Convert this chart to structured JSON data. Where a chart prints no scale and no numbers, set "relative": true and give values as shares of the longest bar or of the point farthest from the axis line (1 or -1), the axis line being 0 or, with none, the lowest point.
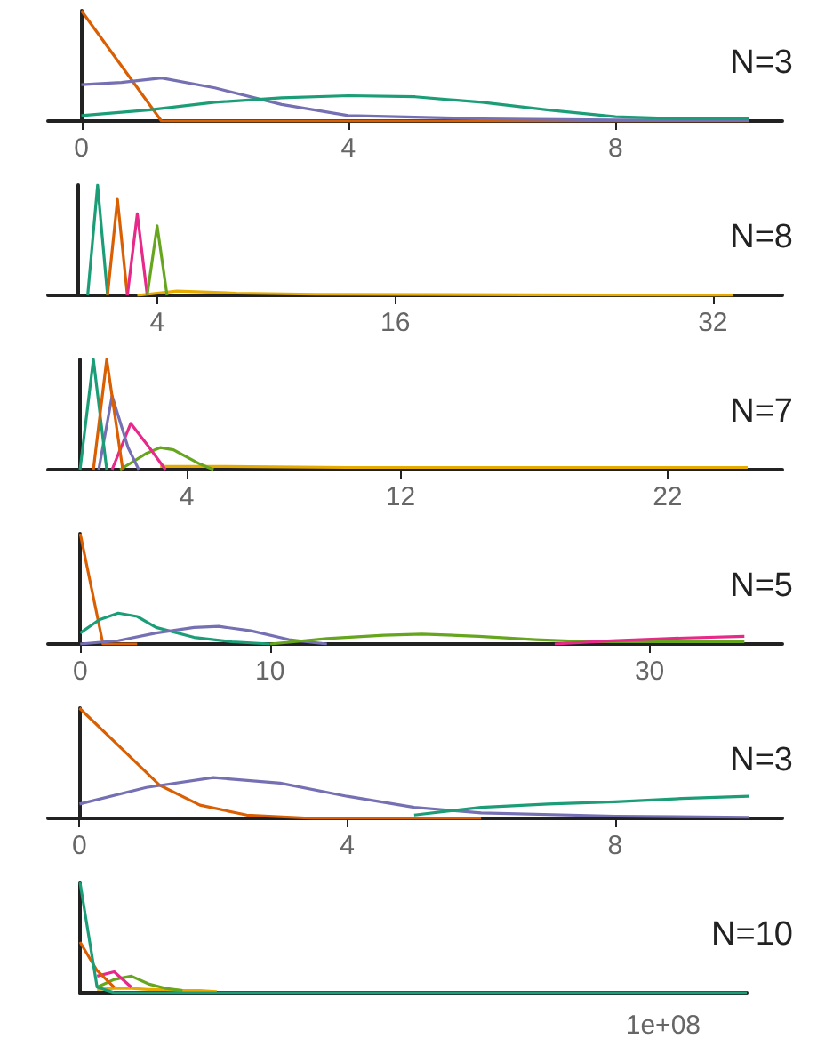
{
  "chart_data": [
    {
      "type": "line",
      "relative": true,
      "xlim": [
        -0.5,
        10.5
      ],
      "xticks": [
        0,
        4,
        8
      ],
      "annotations": [
        "N=3"
      ],
      "series": [
        {
          "color": "#d95f02",
          "x": [
            0,
            0.6,
            1.2,
            2,
            4,
            10
          ],
          "values": [
            1,
            0.5,
            0,
            0,
            0,
            0
          ]
        },
        {
          "color": "#7570b3",
          "x": [
            0,
            0.6,
            1.2,
            2,
            3,
            4,
            6,
            8,
            10
          ],
          "values": [
            0.33,
            0.35,
            0.39,
            0.3,
            0.15,
            0.05,
            0.02,
            0.01,
            0.01
          ]
        },
        {
          "color": "#1b9e77",
          "x": [
            0,
            1,
            2,
            3,
            4,
            5,
            6,
            7,
            8,
            9,
            10
          ],
          "values": [
            0.05,
            0.1,
            0.17,
            0.21,
            0.23,
            0.22,
            0.17,
            0.1,
            0.04,
            0.02,
            0.02
          ]
        }
      ]
    },
    {
      "type": "line",
      "relative": true,
      "xlim": [
        -1.5,
        35.5
      ],
      "xticks": [
        4,
        16,
        32
      ],
      "annotations": [
        "N=8"
      ],
      "series": [
        {
          "color": "#e6ab02",
          "x": [
            3,
            5,
            8,
            12,
            33
          ],
          "values": [
            0,
            0.04,
            0.02,
            0.01,
            0
          ]
        },
        {
          "color": "#1b9e77",
          "x": [
            0.5,
            1,
            1.5
          ],
          "values": [
            0,
            1,
            0
          ]
        },
        {
          "color": "#d95f02",
          "x": [
            1.5,
            2,
            2.5
          ],
          "values": [
            0,
            0.87,
            0
          ]
        },
        {
          "color": "#e7298a",
          "x": [
            2.5,
            3,
            3.5
          ],
          "values": [
            0,
            0.74,
            0
          ]
        },
        {
          "color": "#66a61e",
          "x": [
            3.5,
            4,
            4.5
          ],
          "values": [
            0,
            0.63,
            0
          ]
        }
      ]
    },
    {
      "type": "line",
      "relative": true,
      "xlim": [
        -1.2,
        26.3
      ],
      "xticks": [
        4,
        12,
        22
      ],
      "annotations": [
        "N=7"
      ],
      "series": [
        {
          "color": "#e6ab02",
          "x": [
            3,
            5,
            10,
            25
          ],
          "values": [
            0.03,
            0.03,
            0.02,
            0.02
          ]
        },
        {
          "color": "#66a61e",
          "x": [
            1.5,
            2.5,
            3,
            3.5,
            4.5,
            5
          ],
          "values": [
            0,
            0.15,
            0.2,
            0.18,
            0.05,
            0
          ]
        },
        {
          "color": "#e7298a",
          "x": [
            1.2,
            1.9,
            2.6,
            3.2
          ],
          "values": [
            0,
            0.42,
            0.2,
            0
          ]
        },
        {
          "color": "#7570b3",
          "x": [
            0.7,
            1.2,
            1.8,
            2.2
          ],
          "values": [
            0,
            0.67,
            0.2,
            0
          ]
        },
        {
          "color": "#1b9e77",
          "x": [
            0,
            0.5,
            1
          ],
          "values": [
            0,
            1,
            0
          ]
        },
        {
          "color": "#d95f02",
          "x": [
            0.5,
            1,
            1.6
          ],
          "values": [
            0,
            1,
            0
          ]
        }
      ]
    },
    {
      "type": "line",
      "relative": true,
      "xlim": [
        -1.7,
        37
      ],
      "xticks": [
        0,
        10,
        30
      ],
      "annotations": [
        "N=5"
      ],
      "series": [
        {
          "color": "#d95f02",
          "x": [
            0,
            0.6,
            1.2,
            3
          ],
          "values": [
            1,
            0.5,
            0,
            0
          ]
        },
        {
          "color": "#1b9e77",
          "x": [
            0,
            1,
            2,
            3,
            4,
            6,
            8,
            10
          ],
          "values": [
            0.1,
            0.22,
            0.28,
            0.25,
            0.15,
            0.06,
            0.02,
            0
          ]
        },
        {
          "color": "#7570b3",
          "x": [
            0,
            2,
            4,
            6,
            7.3,
            9,
            11,
            13
          ],
          "values": [
            0,
            0.03,
            0.1,
            0.15,
            0.16,
            0.12,
            0.04,
            0
          ]
        },
        {
          "color": "#66a61e",
          "x": [
            10,
            13,
            16,
            18,
            21,
            24,
            27,
            35
          ],
          "values": [
            0,
            0.05,
            0.08,
            0.09,
            0.07,
            0.04,
            0.02,
            0.02
          ]
        },
        {
          "color": "#e7298a",
          "x": [
            25,
            28,
            31,
            35
          ],
          "values": [
            0,
            0.03,
            0.05,
            0.07
          ]
        }
      ]
    },
    {
      "type": "line",
      "relative": true,
      "xlim": [
        -0.47,
        10.5
      ],
      "xticks": [
        0,
        4,
        8
      ],
      "annotations": [
        "N=3"
      ],
      "series": [
        {
          "color": "#d95f02",
          "x": [
            0,
            0.6,
            1.2,
            1.8,
            2.5,
            3.5,
            6
          ],
          "values": [
            1,
            0.65,
            0.3,
            0.12,
            0.03,
            0,
            0
          ]
        },
        {
          "color": "#7570b3",
          "x": [
            0,
            1,
            2,
            3,
            4,
            5,
            6,
            8,
            10
          ],
          "values": [
            0.13,
            0.28,
            0.37,
            0.32,
            0.2,
            0.1,
            0.05,
            0.02,
            0.01
          ]
        },
        {
          "color": "#1b9e77",
          "x": [
            5,
            6,
            7,
            8,
            9,
            10
          ],
          "values": [
            0.03,
            0.1,
            0.13,
            0.15,
            0.18,
            0.2
          ]
        }
      ]
    },
    {
      "type": "line",
      "relative": true,
      "categories": [
        null,
        null,
        null,
        null,
        null,
        null,
        null,
        null,
        null,
        null,
        null,
        null,
        null,
        null,
        null,
        null,
        null,
        null,
        null,
        null,
        null,
        null,
        null,
        null,
        null,
        null,
        null,
        null,
        null,
        null,
        null,
        null,
        null,
        null,
        null,
        null,
        null,
        null,
        null,
        null
      ],
      "annotations": [
        "N=10",
        "1e+08"
      ],
      "series": [
        {
          "color": "#e6ab02",
          "values": [
            null,
            0.03,
            0.04,
            0.04,
            0.03,
            0.03,
            0.02,
            0.02,
            0.01,
            null,
            null,
            null,
            null,
            null,
            null,
            null,
            null,
            null,
            null,
            null,
            null,
            null,
            null,
            null,
            null,
            null,
            null,
            null,
            null,
            null,
            null,
            null,
            null,
            null,
            null,
            null,
            null,
            null,
            null,
            null
          ]
        },
        {
          "color": "#66a61e",
          "values": [
            null,
            0.05,
            0.12,
            0.15,
            0.08,
            0.04,
            0.02,
            null,
            null,
            null,
            null,
            null,
            null,
            null,
            null,
            null,
            null,
            null,
            null,
            null,
            null,
            null,
            null,
            null,
            null,
            null,
            null,
            null,
            null,
            null,
            null,
            null,
            null,
            null,
            null,
            null,
            null,
            null,
            null,
            null
          ]
        },
        {
          "color": "#e7298a",
          "values": [
            null,
            0.15,
            0.19,
            0.05,
            null,
            null,
            null,
            null,
            null,
            null,
            null,
            null,
            null,
            null,
            null,
            null,
            null,
            null,
            null,
            null,
            null,
            null,
            null,
            null,
            null,
            null,
            null,
            null,
            null,
            null,
            null,
            null,
            null,
            null,
            null,
            null,
            null,
            null,
            null,
            null
          ]
        },
        {
          "color": "#d95f02",
          "values": [
            0.46,
            0.2,
            0.05,
            null,
            null,
            null,
            null,
            null,
            null,
            null,
            null,
            null,
            null,
            null,
            null,
            null,
            null,
            null,
            null,
            null,
            null,
            null,
            null,
            null,
            null,
            null,
            null,
            null,
            null,
            null,
            null,
            null,
            null,
            null,
            null,
            null,
            null,
            null,
            null,
            null
          ]
        },
        {
          "color": "#1b9e77",
          "values": [
            1,
            0.05,
            0,
            0,
            0,
            0,
            0,
            0,
            0,
            0,
            0,
            0,
            0,
            0,
            0,
            0,
            0,
            0,
            0,
            0,
            0,
            0,
            0,
            0,
            0,
            0,
            0,
            0,
            0,
            0,
            0,
            0,
            0,
            0,
            0,
            0,
            0,
            0,
            0,
            0
          ]
        }
      ]
    }
  ]
}
